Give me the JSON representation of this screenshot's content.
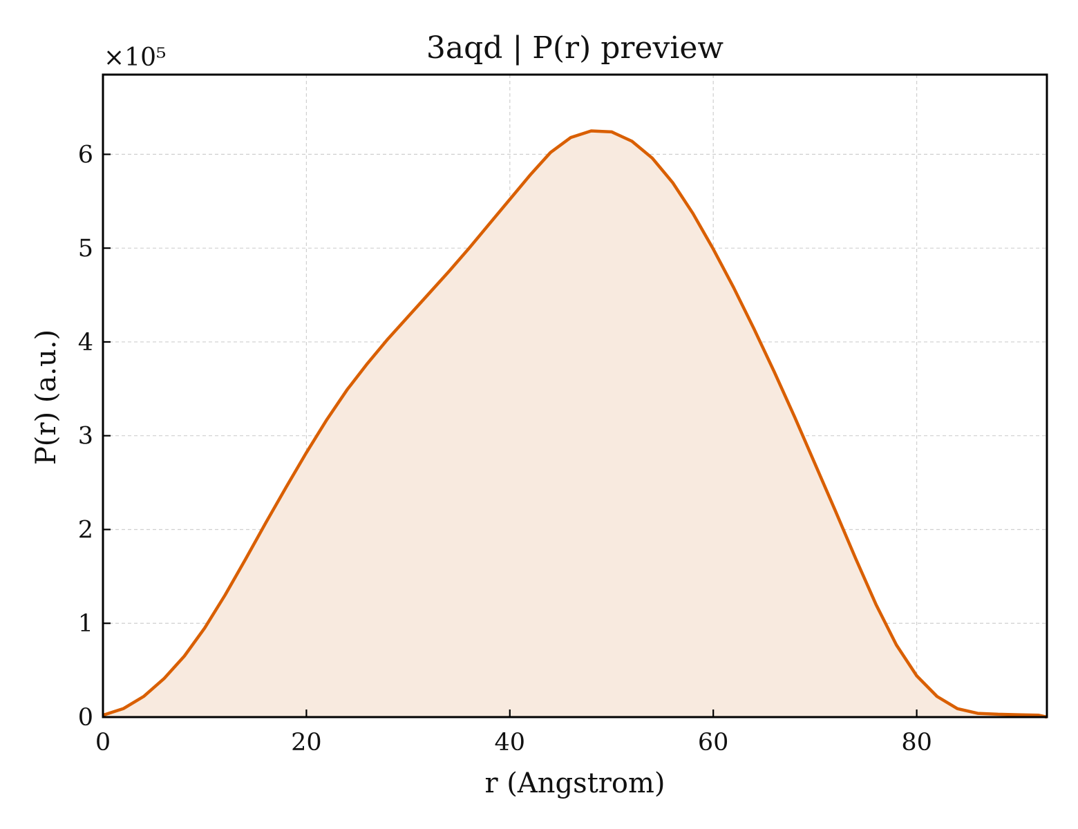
{
  "chart_data": {
    "type": "area",
    "title": "3aqd | P(r) preview",
    "xlabel": "r (Angstrom)",
    "ylabel": "P(r) (a.u.)",
    "y_multiplier_label": "×10⁵",
    "xlim": [
      0,
      92.8
    ],
    "ylim": [
      0,
      6.85
    ],
    "xticks": [
      0,
      20,
      40,
      60,
      80
    ],
    "xtick_labels": [
      "0",
      "20",
      "40",
      "60",
      "80"
    ],
    "yticks": [
      0,
      1,
      2,
      3,
      4,
      5,
      6
    ],
    "ytick_labels": [
      "0",
      "1",
      "2",
      "3",
      "4",
      "5",
      "6"
    ],
    "grid": true,
    "line_color": "#d95f02",
    "fill_color": "#f8eadf",
    "series": [
      {
        "x": [
          0,
          2,
          4,
          6,
          8,
          10,
          12,
          14,
          16,
          18,
          20,
          22,
          24,
          26,
          28,
          30,
          32,
          34,
          36,
          38,
          40,
          42,
          44,
          46,
          48,
          50,
          52,
          54,
          56,
          58,
          60,
          62,
          64,
          66,
          68,
          70,
          72,
          74,
          76,
          78,
          80,
          82,
          84,
          86,
          88,
          90,
          92,
          92.8
        ],
        "y": [
          0.02,
          0.09,
          0.22,
          0.41,
          0.65,
          0.95,
          1.3,
          1.68,
          2.07,
          2.45,
          2.82,
          3.17,
          3.49,
          3.77,
          4.03,
          4.27,
          4.51,
          4.75,
          5.0,
          5.26,
          5.52,
          5.78,
          6.02,
          6.18,
          6.25,
          6.24,
          6.14,
          5.96,
          5.7,
          5.37,
          4.99,
          4.58,
          4.14,
          3.68,
          3.2,
          2.7,
          2.2,
          1.69,
          1.2,
          0.77,
          0.44,
          0.22,
          0.09,
          0.04,
          0.03,
          0.025,
          0.02,
          0.0
        ]
      }
    ]
  }
}
